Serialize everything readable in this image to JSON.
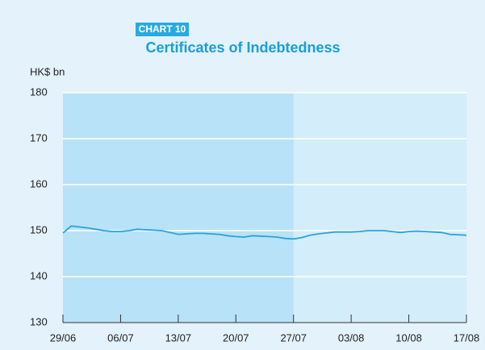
{
  "chart_data": {
    "type": "line",
    "badge": "CHART 10",
    "title": "Certificates of Indebtedness",
    "y_label": "HK$ bn",
    "categories": [
      "29/06",
      null,
      null,
      null,
      null,
      null,
      null,
      "06/07",
      null,
      null,
      null,
      null,
      null,
      null,
      "13/07",
      null,
      null,
      null,
      null,
      null,
      null,
      "20/07",
      null,
      null,
      null,
      null,
      null,
      null,
      "27/07",
      null,
      null,
      null,
      null,
      null,
      null,
      "03/08",
      null,
      null,
      null,
      null,
      null,
      null,
      "10/08",
      null,
      null,
      null,
      null,
      null,
      null,
      "17/08"
    ],
    "series": [
      {
        "name": "Certificates of Indebtedness",
        "color": "#29a3dd",
        "values": [
          149.5,
          151.0,
          150.8,
          150.6,
          150.3,
          150.0,
          149.8,
          149.8,
          150.0,
          150.3,
          150.2,
          150.1,
          150.0,
          149.6,
          149.2,
          149.3,
          149.4,
          149.4,
          149.3,
          149.2,
          148.9,
          148.7,
          148.6,
          148.9,
          148.8,
          148.7,
          148.6,
          148.3,
          148.2,
          148.5,
          149.0,
          149.3,
          149.5,
          149.7,
          149.7,
          149.7,
          149.8,
          150.0,
          150.0,
          150.0,
          149.8,
          149.6,
          149.8,
          149.9,
          149.8,
          149.7,
          149.6,
          149.2,
          149.1,
          149.0
        ]
      }
    ],
    "shaded_region": [
      "29/06",
      "27/07"
    ],
    "ylim": [
      130,
      180
    ],
    "yticks": [
      130,
      140,
      150,
      160,
      170,
      180
    ],
    "grid": true
  }
}
